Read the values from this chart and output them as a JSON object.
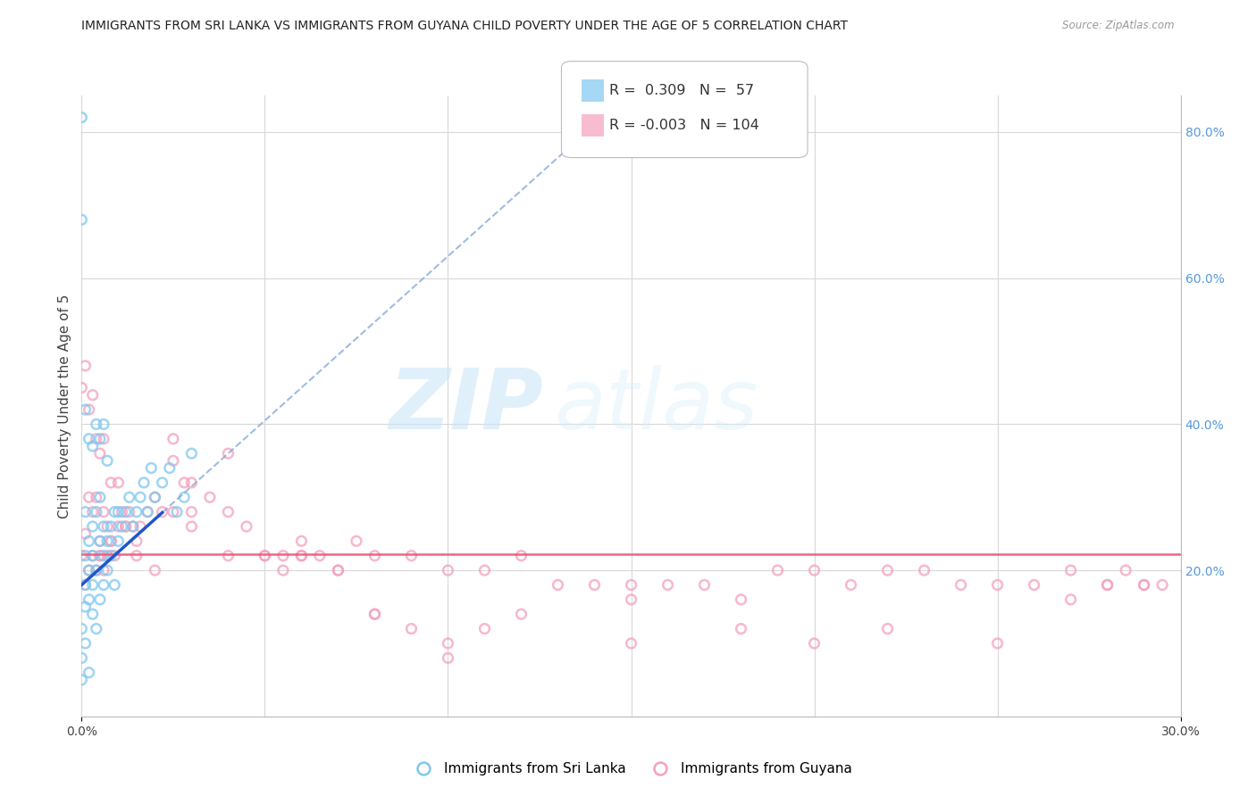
{
  "title": "IMMIGRANTS FROM SRI LANKA VS IMMIGRANTS FROM GUYANA CHILD POVERTY UNDER THE AGE OF 5 CORRELATION CHART",
  "source": "Source: ZipAtlas.com",
  "ylabel": "Child Poverty Under the Age of 5",
  "xlim": [
    0.0,
    0.3
  ],
  "ylim": [
    0.0,
    0.85
  ],
  "x_ticks": [
    0.0,
    0.05,
    0.1,
    0.15,
    0.2,
    0.25,
    0.3
  ],
  "y_ticks": [
    0.0,
    0.2,
    0.4,
    0.6,
    0.8
  ],
  "y_tick_labels_right": [
    "",
    "20.0%",
    "40.0%",
    "60.0%",
    "80.0%"
  ],
  "sri_lanka_R": 0.309,
  "sri_lanka_N": 57,
  "guyana_R": -0.003,
  "guyana_N": 104,
  "watermark_zip": "ZIP",
  "watermark_atlas": "atlas",
  "background_color": "#ffffff",
  "grid_color": "#d8d8d8",
  "scatter_size": 60,
  "sri_lanka_color": "#7EC8F0",
  "guyana_color": "#F5A0BC",
  "sri_lanka_trend_solid_color": "#2255CC",
  "sri_lanka_trend_dash_color": "#88AADD",
  "guyana_trend_color": "#EE5577",
  "sri_lanka_x": [
    0.0,
    0.0,
    0.0,
    0.001,
    0.001,
    0.001,
    0.001,
    0.001,
    0.002,
    0.002,
    0.002,
    0.002,
    0.003,
    0.003,
    0.003,
    0.003,
    0.004,
    0.004,
    0.004,
    0.005,
    0.005,
    0.005,
    0.006,
    0.006,
    0.006,
    0.007,
    0.007,
    0.008,
    0.008,
    0.009,
    0.009,
    0.01,
    0.01,
    0.011,
    0.012,
    0.013,
    0.014,
    0.015,
    0.016,
    0.017,
    0.018,
    0.019,
    0.02,
    0.022,
    0.024,
    0.026,
    0.028,
    0.03,
    0.0,
    0.0,
    0.001,
    0.002,
    0.003,
    0.004,
    0.005,
    0.006,
    0.007
  ],
  "sri_lanka_y": [
    0.05,
    0.08,
    0.12,
    0.18,
    0.22,
    0.28,
    0.1,
    0.15,
    0.06,
    0.2,
    0.24,
    0.16,
    0.22,
    0.18,
    0.26,
    0.14,
    0.2,
    0.28,
    0.12,
    0.24,
    0.16,
    0.3,
    0.22,
    0.18,
    0.26,
    0.24,
    0.2,
    0.26,
    0.22,
    0.28,
    0.18,
    0.24,
    0.28,
    0.26,
    0.28,
    0.3,
    0.26,
    0.28,
    0.3,
    0.32,
    0.28,
    0.34,
    0.3,
    0.32,
    0.34,
    0.28,
    0.3,
    0.36,
    0.82,
    0.68,
    0.42,
    0.38,
    0.37,
    0.4,
    0.38,
    0.4,
    0.35
  ],
  "guyana_x": [
    0.0,
    0.0,
    0.001,
    0.001,
    0.001,
    0.002,
    0.002,
    0.002,
    0.003,
    0.003,
    0.003,
    0.004,
    0.004,
    0.004,
    0.005,
    0.005,
    0.005,
    0.006,
    0.006,
    0.006,
    0.007,
    0.007,
    0.008,
    0.008,
    0.009,
    0.01,
    0.01,
    0.011,
    0.012,
    0.013,
    0.014,
    0.015,
    0.016,
    0.018,
    0.02,
    0.022,
    0.025,
    0.028,
    0.03,
    0.035,
    0.04,
    0.045,
    0.05,
    0.055,
    0.06,
    0.065,
    0.07,
    0.075,
    0.08,
    0.09,
    0.1,
    0.11,
    0.12,
    0.13,
    0.14,
    0.15,
    0.16,
    0.17,
    0.18,
    0.19,
    0.2,
    0.21,
    0.22,
    0.23,
    0.24,
    0.25,
    0.26,
    0.27,
    0.28,
    0.29,
    0.295,
    0.285,
    0.025,
    0.03,
    0.04,
    0.05,
    0.06,
    0.07,
    0.08,
    0.09,
    0.1,
    0.11,
    0.12,
    0.15,
    0.18,
    0.2,
    0.22,
    0.25,
    0.27,
    0.28,
    0.29,
    0.005,
    0.008,
    0.012,
    0.015,
    0.02,
    0.025,
    0.03,
    0.04,
    0.055,
    0.06,
    0.08,
    0.1,
    0.15
  ],
  "guyana_y": [
    0.22,
    0.45,
    0.18,
    0.25,
    0.48,
    0.2,
    0.3,
    0.42,
    0.22,
    0.28,
    0.44,
    0.2,
    0.3,
    0.38,
    0.22,
    0.24,
    0.36,
    0.2,
    0.28,
    0.38,
    0.22,
    0.26,
    0.24,
    0.32,
    0.22,
    0.26,
    0.32,
    0.28,
    0.26,
    0.28,
    0.26,
    0.24,
    0.26,
    0.28,
    0.3,
    0.28,
    0.35,
    0.32,
    0.28,
    0.3,
    0.28,
    0.26,
    0.22,
    0.22,
    0.24,
    0.22,
    0.2,
    0.24,
    0.22,
    0.22,
    0.2,
    0.2,
    0.22,
    0.18,
    0.18,
    0.18,
    0.18,
    0.18,
    0.16,
    0.2,
    0.2,
    0.18,
    0.2,
    0.2,
    0.18,
    0.18,
    0.18,
    0.2,
    0.18,
    0.18,
    0.18,
    0.2,
    0.38,
    0.32,
    0.36,
    0.22,
    0.22,
    0.2,
    0.14,
    0.12,
    0.1,
    0.12,
    0.14,
    0.1,
    0.12,
    0.1,
    0.12,
    0.1,
    0.16,
    0.18,
    0.18,
    0.22,
    0.24,
    0.26,
    0.22,
    0.2,
    0.28,
    0.26,
    0.22,
    0.2,
    0.22,
    0.14,
    0.08,
    0.16
  ]
}
